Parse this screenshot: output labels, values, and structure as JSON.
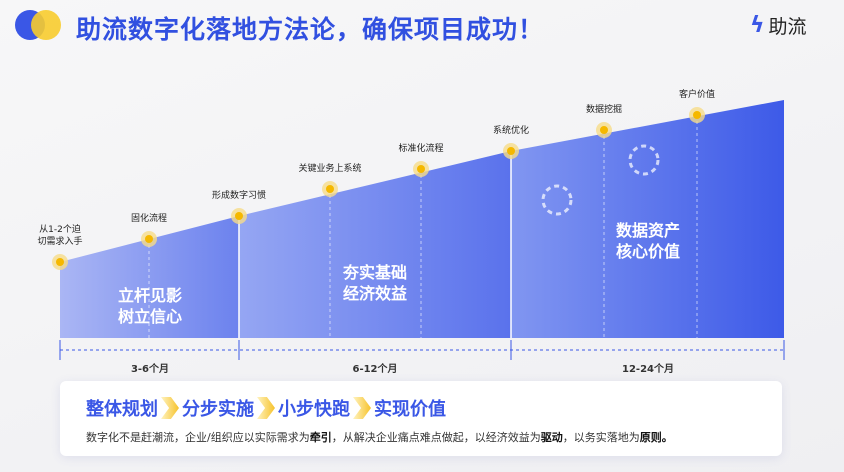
{
  "header": {
    "title": "助流数字化落地方法论，确保项目成功！",
    "brand": "助流"
  },
  "milestones": [
    "从1-2个迫\n切需求入手",
    "固化流程",
    "形成数字习惯",
    "关键业务上系统",
    "标准化流程",
    "系统优化",
    "数据挖掘",
    "客户价值"
  ],
  "phases": [
    {
      "title": "立杆见影\n树立信心",
      "duration": "3-6个月"
    },
    {
      "title": "夯实基础\n经济效益",
      "duration": "6-12个月"
    },
    {
      "title": "数据资产\n核心价值",
      "duration": "12-24个月"
    }
  ],
  "summary": {
    "steps": [
      "整体规划",
      "分步实施",
      "小步快跑",
      "实现价值"
    ],
    "desc_parts": [
      "数字化不是赶潮流，企业/组织应以实际需求为",
      "牵引",
      "，从解决企业痛点难点做起，以经济效益为",
      "驱动",
      "，以务实落地为",
      "原则。"
    ]
  },
  "colors": {
    "primary": "#3150e0",
    "accent": "#f6c22b"
  }
}
